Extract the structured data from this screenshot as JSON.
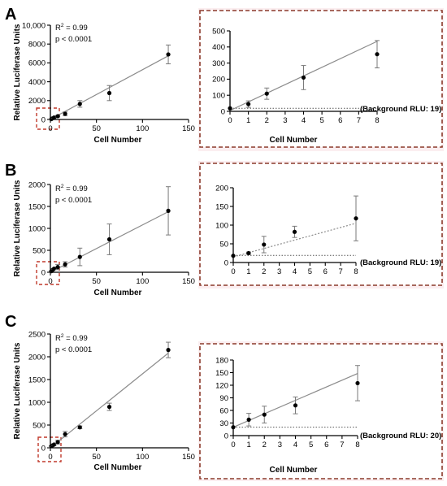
{
  "panels": [
    {
      "label": "A",
      "r2": "R",
      "r2_sup": "2",
      "r2_val": " = 0.99",
      "p": "p < 0.0001",
      "background_note": "(Background RLU: 19)"
    },
    {
      "label": "B",
      "r2": "R",
      "r2_sup": "2",
      "r2_val": " = 0.99",
      "p": "p < 0.0001",
      "background_note": "(Background RLU: 19)"
    },
    {
      "label": "C",
      "r2": "R",
      "r2_sup": "2",
      "r2_val": " = 0.99",
      "p": "p < 0.0001",
      "background_note": "(Background RLU: 20)"
    }
  ],
  "colors": {
    "zoom_box": "#c0392b",
    "inset_frame": "#8b3a2b",
    "inset_bg": "#fbeef0",
    "fit_line": "#8c8c8c"
  },
  "chart_data": [
    {
      "panel": "A",
      "view": "full",
      "type": "scatter",
      "title": "",
      "xlabel": "Cell Number",
      "ylabel": "Relative Luciferase Units",
      "xlim": [
        0,
        150
      ],
      "ylim": [
        0,
        10000
      ],
      "x_ticks": [
        0,
        50,
        100,
        150
      ],
      "x_tick_labels": [
        "0",
        "50",
        "100",
        "150"
      ],
      "y_ticks": [
        0,
        2000,
        4000,
        6000,
        8000,
        10000
      ],
      "y_tick_labels": [
        "0",
        "2000",
        "4000",
        "6000",
        "8000",
        "10,000"
      ],
      "series": [
        {
          "x": [
            1,
            2,
            4,
            8,
            16,
            32,
            64,
            128
          ],
          "y": [
            45,
            110,
            210,
            350,
            600,
            1650,
            2800,
            6900
          ],
          "err": [
            20,
            35,
            75,
            85,
            200,
            350,
            800,
            1000
          ]
        }
      ],
      "fit": [
        [
          0,
          15
        ],
        [
          128,
          6750
        ]
      ]
    },
    {
      "panel": "A",
      "view": "inset",
      "type": "scatter",
      "xlabel": "Cell Number",
      "ylabel": "",
      "xlim": [
        0,
        8
      ],
      "ylim": [
        0,
        500
      ],
      "x_ticks": [
        0,
        1,
        2,
        3,
        4,
        5,
        6,
        7,
        8
      ],
      "x_tick_labels": [
        "0",
        "1",
        "2",
        "3",
        "4",
        "5",
        "6",
        "7",
        "8"
      ],
      "y_ticks": [
        0,
        100,
        200,
        300,
        400,
        500
      ],
      "y_tick_labels": [
        "0",
        "100",
        "200",
        "300",
        "400",
        "500"
      ],
      "background": 19,
      "series": [
        {
          "x": [
            0,
            1,
            2,
            4,
            8
          ],
          "y": [
            19,
            45,
            110,
            210,
            355
          ],
          "err": [
            0,
            20,
            35,
            75,
            85
          ]
        }
      ],
      "fit": [
        [
          0,
          5
        ],
        [
          8,
          435
        ]
      ]
    },
    {
      "panel": "B",
      "view": "full",
      "type": "scatter",
      "title": "",
      "xlabel": "Cell Number",
      "ylabel": "Relative Luciferase Units",
      "xlim": [
        0,
        150
      ],
      "ylim": [
        0,
        2000
      ],
      "x_ticks": [
        0,
        50,
        100,
        150
      ],
      "x_tick_labels": [
        "0",
        "50",
        "100",
        "150"
      ],
      "y_ticks": [
        0,
        500,
        1000,
        1500,
        2000
      ],
      "y_tick_labels": [
        "0",
        "500",
        "1000",
        "1500",
        "2000"
      ],
      "series": [
        {
          "x": [
            1,
            2,
            4,
            8,
            16,
            32,
            64,
            128
          ],
          "y": [
            25,
            48,
            82,
            118,
            180,
            350,
            750,
            1400
          ],
          "err": [
            5,
            20,
            15,
            60,
            60,
            200,
            350,
            550
          ]
        }
      ],
      "fit": [
        [
          0,
          0
        ],
        [
          128,
          1380
        ]
      ]
    },
    {
      "panel": "B",
      "view": "inset",
      "type": "scatter",
      "xlabel": "",
      "ylabel": "",
      "xlim": [
        0,
        8
      ],
      "ylim": [
        0,
        200
      ],
      "x_ticks": [
        0,
        1,
        2,
        3,
        4,
        5,
        6,
        7,
        8
      ],
      "x_tick_labels": [
        "0",
        "1",
        "2",
        "3",
        "4",
        "5",
        "6",
        "7",
        "8"
      ],
      "y_ticks": [
        0,
        50,
        100,
        150,
        200
      ],
      "y_tick_labels": [
        "0",
        "50",
        "100",
        "150",
        "200"
      ],
      "background": 19,
      "series": [
        {
          "x": [
            0,
            1,
            2,
            4,
            8
          ],
          "y": [
            18,
            25,
            48,
            82,
            118
          ],
          "err": [
            0,
            3,
            22,
            15,
            60
          ]
        }
      ],
      "fit": [
        [
          0,
          15
        ],
        [
          8,
          105
        ]
      ]
    },
    {
      "panel": "C",
      "view": "full",
      "type": "scatter",
      "title": "",
      "xlabel": "Cell Number",
      "ylabel": "Relative Luciferase Units",
      "xlim": [
        0,
        150
      ],
      "ylim": [
        0,
        2500
      ],
      "x_ticks": [
        0,
        50,
        100,
        150
      ],
      "x_tick_labels": [
        "0",
        "50",
        "100",
        "150"
      ],
      "y_ticks": [
        0,
        500,
        1000,
        1500,
        2000,
        2500
      ],
      "y_tick_labels": [
        "0",
        "500",
        "1000",
        "1500",
        "2000",
        "2500"
      ],
      "series": [
        {
          "x": [
            1,
            2,
            4,
            8,
            16,
            32,
            64,
            128
          ],
          "y": [
            38,
            50,
            72,
            125,
            300,
            450,
            900,
            2150
          ],
          "err": [
            10,
            20,
            20,
            40,
            60,
            30,
            80,
            170
          ]
        }
      ],
      "fit": [
        [
          0,
          0
        ],
        [
          128,
          2080
        ]
      ]
    },
    {
      "panel": "C",
      "view": "inset",
      "type": "scatter",
      "xlabel": "Cell Number",
      "ylabel": "",
      "xlim": [
        0,
        8
      ],
      "ylim": [
        0,
        180
      ],
      "x_ticks": [
        0,
        1,
        2,
        3,
        4,
        5,
        6,
        7,
        8
      ],
      "x_tick_labels": [
        "0",
        "1",
        "2",
        "3",
        "4",
        "5",
        "6",
        "7",
        "8"
      ],
      "y_ticks": [
        0,
        30,
        60,
        90,
        120,
        150,
        180
      ],
      "y_tick_labels": [
        "0",
        "30",
        "60",
        "90",
        "120",
        "150",
        "180"
      ],
      "background": 20,
      "series": [
        {
          "x": [
            0,
            1,
            2,
            4,
            8
          ],
          "y": [
            20,
            38,
            50,
            72,
            125
          ],
          "err": [
            0,
            15,
            20,
            20,
            42
          ]
        }
      ],
      "fit": [
        [
          0,
          20
        ],
        [
          8,
          148
        ]
      ]
    }
  ]
}
